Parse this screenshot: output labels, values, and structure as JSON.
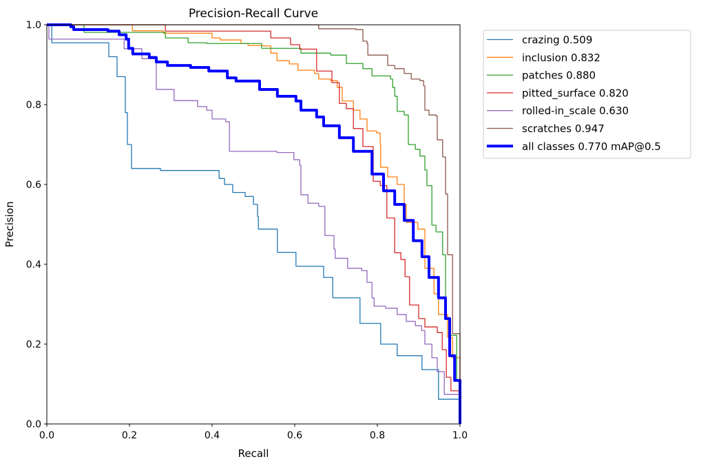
{
  "chart_data": {
    "type": "line",
    "title": "Precision-Recall Curve",
    "xlabel": "Recall",
    "ylabel": "Precision",
    "xlim": [
      0,
      1
    ],
    "ylim": [
      0,
      1
    ],
    "xticks": [
      "0.0",
      "0.2",
      "0.4",
      "0.6",
      "0.8",
      "1.0"
    ],
    "yticks": [
      "0.0",
      "0.2",
      "0.4",
      "0.6",
      "0.8",
      "1.0"
    ],
    "grid": false,
    "legend_placement": "outside-right-top",
    "series": [
      {
        "name": "crazing 0.509",
        "color": "#1f77b4",
        "width": 1.3,
        "points": [
          [
            0,
            1
          ],
          [
            0.012,
            0.955
          ],
          [
            0.15,
            0.92
          ],
          [
            0.17,
            0.87
          ],
          [
            0.19,
            0.78
          ],
          [
            0.195,
            0.7
          ],
          [
            0.205,
            0.64
          ],
          [
            0.275,
            0.635
          ],
          [
            0.417,
            0.615
          ],
          [
            0.43,
            0.6
          ],
          [
            0.45,
            0.58
          ],
          [
            0.48,
            0.57
          ],
          [
            0.5,
            0.55
          ],
          [
            0.51,
            0.52
          ],
          [
            0.512,
            0.488
          ],
          [
            0.558,
            0.43
          ],
          [
            0.603,
            0.395
          ],
          [
            0.67,
            0.367
          ],
          [
            0.692,
            0.316
          ],
          [
            0.758,
            0.252
          ],
          [
            0.808,
            0.2
          ],
          [
            0.848,
            0.171
          ],
          [
            0.908,
            0.136
          ],
          [
            0.948,
            0.062
          ],
          [
            1,
            0
          ]
        ]
      },
      {
        "name": "inclusion 0.832",
        "color": "#ff7f0e",
        "width": 1.3,
        "points": [
          [
            0,
            1
          ],
          [
            0.207,
            0.985
          ],
          [
            0.282,
            0.979
          ],
          [
            0.4,
            0.967
          ],
          [
            0.42,
            0.962
          ],
          [
            0.47,
            0.953
          ],
          [
            0.487,
            0.948
          ],
          [
            0.525,
            0.947
          ],
          [
            0.542,
            0.929
          ],
          [
            0.557,
            0.91
          ],
          [
            0.587,
            0.902
          ],
          [
            0.608,
            0.886
          ],
          [
            0.648,
            0.878
          ],
          [
            0.658,
            0.864
          ],
          [
            0.687,
            0.86
          ],
          [
            0.703,
            0.843
          ],
          [
            0.715,
            0.809
          ],
          [
            0.742,
            0.786
          ],
          [
            0.758,
            0.764
          ],
          [
            0.775,
            0.734
          ],
          [
            0.798,
            0.729
          ],
          [
            0.807,
            0.7
          ],
          [
            0.808,
            0.643
          ],
          [
            0.825,
            0.619
          ],
          [
            0.848,
            0.6
          ],
          [
            0.865,
            0.55
          ],
          [
            0.87,
            0.505
          ],
          [
            0.898,
            0.488
          ],
          [
            0.915,
            0.39
          ],
          [
            0.937,
            0.326
          ],
          [
            0.948,
            0.274
          ],
          [
            0.97,
            0.217
          ],
          [
            0.982,
            0.166
          ],
          [
            1,
            0
          ]
        ]
      },
      {
        "name": "patches 0.880",
        "color": "#2ca02c",
        "width": 1.3,
        "points": [
          [
            0,
            1
          ],
          [
            0.09,
            0.981
          ],
          [
            0.287,
            0.967
          ],
          [
            0.342,
            0.955
          ],
          [
            0.387,
            0.953
          ],
          [
            0.52,
            0.941
          ],
          [
            0.575,
            0.941
          ],
          [
            0.615,
            0.929
          ],
          [
            0.687,
            0.924
          ],
          [
            0.725,
            0.903
          ],
          [
            0.765,
            0.89
          ],
          [
            0.787,
            0.872
          ],
          [
            0.832,
            0.864
          ],
          [
            0.837,
            0.843
          ],
          [
            0.842,
            0.821
          ],
          [
            0.848,
            0.783
          ],
          [
            0.865,
            0.774
          ],
          [
            0.875,
            0.7
          ],
          [
            0.892,
            0.688
          ],
          [
            0.903,
            0.671
          ],
          [
            0.915,
            0.636
          ],
          [
            0.92,
            0.597
          ],
          [
            0.932,
            0.498
          ],
          [
            0.942,
            0.481
          ],
          [
            0.958,
            0.424
          ],
          [
            0.965,
            0.264
          ],
          [
            0.975,
            0.222
          ],
          [
            0.992,
            0.109
          ],
          [
            1,
            0
          ]
        ]
      },
      {
        "name": "pitted_surface 0.820",
        "color": "#d62728",
        "width": 1.3,
        "points": [
          [
            0,
            1
          ],
          [
            0.287,
            0.984
          ],
          [
            0.542,
            0.967
          ],
          [
            0.59,
            0.95
          ],
          [
            0.612,
            0.939
          ],
          [
            0.653,
            0.884
          ],
          [
            0.667,
            0.884
          ],
          [
            0.69,
            0.855
          ],
          [
            0.708,
            0.803
          ],
          [
            0.725,
            0.79
          ],
          [
            0.742,
            0.74
          ],
          [
            0.765,
            0.695
          ],
          [
            0.79,
            0.608
          ],
          [
            0.807,
            0.597
          ],
          [
            0.823,
            0.516
          ],
          [
            0.842,
            0.429
          ],
          [
            0.857,
            0.412
          ],
          [
            0.867,
            0.369
          ],
          [
            0.878,
            0.298
          ],
          [
            0.9,
            0.264
          ],
          [
            0.915,
            0.243
          ],
          [
            0.945,
            0.229
          ],
          [
            0.957,
            0.186
          ],
          [
            0.967,
            0.117
          ],
          [
            0.978,
            0.083
          ],
          [
            0.987,
            0.083
          ],
          [
            1,
            0
          ]
        ]
      },
      {
        "name": "rolled-in_scale 0.630",
        "color": "#9467bd",
        "width": 1.3,
        "points": [
          [
            0,
            1
          ],
          [
            0.005,
            0.964
          ],
          [
            0.187,
            0.94
          ],
          [
            0.23,
            0.915
          ],
          [
            0.265,
            0.838
          ],
          [
            0.308,
            0.81
          ],
          [
            0.365,
            0.795
          ],
          [
            0.387,
            0.786
          ],
          [
            0.4,
            0.764
          ],
          [
            0.433,
            0.757
          ],
          [
            0.442,
            0.683
          ],
          [
            0.557,
            0.68
          ],
          [
            0.598,
            0.662
          ],
          [
            0.612,
            0.648
          ],
          [
            0.615,
            0.574
          ],
          [
            0.632,
            0.553
          ],
          [
            0.658,
            0.545
          ],
          [
            0.673,
            0.472
          ],
          [
            0.695,
            0.438
          ],
          [
            0.698,
            0.415
          ],
          [
            0.728,
            0.39
          ],
          [
            0.762,
            0.384
          ],
          [
            0.775,
            0.355
          ],
          [
            0.787,
            0.316
          ],
          [
            0.792,
            0.295
          ],
          [
            0.82,
            0.29
          ],
          [
            0.848,
            0.274
          ],
          [
            0.87,
            0.257
          ],
          [
            0.892,
            0.246
          ],
          [
            0.907,
            0.234
          ],
          [
            0.915,
            0.2
          ],
          [
            0.932,
            0.166
          ],
          [
            0.945,
            0.131
          ],
          [
            0.962,
            0.074
          ],
          [
            1,
            0
          ]
        ]
      },
      {
        "name": "scratches 0.947",
        "color": "#8c564b",
        "width": 1.3,
        "points": [
          [
            0,
            1
          ],
          [
            0.658,
            0.99
          ],
          [
            0.748,
            0.988
          ],
          [
            0.765,
            0.959
          ],
          [
            0.775,
            0.953
          ],
          [
            0.777,
            0.924
          ],
          [
            0.825,
            0.898
          ],
          [
            0.842,
            0.89
          ],
          [
            0.865,
            0.878
          ],
          [
            0.882,
            0.864
          ],
          [
            0.903,
            0.86
          ],
          [
            0.912,
            0.847
          ],
          [
            0.915,
            0.786
          ],
          [
            0.925,
            0.774
          ],
          [
            0.942,
            0.772
          ],
          [
            0.945,
            0.712
          ],
          [
            0.958,
            0.669
          ],
          [
            0.965,
            0.576
          ],
          [
            0.97,
            0.424
          ],
          [
            0.982,
            0.226
          ],
          [
            0.992,
            0.226
          ],
          [
            1,
            0
          ]
        ]
      },
      {
        "name": "all classes 0.770 mAP@0.5",
        "color": "#0000ff",
        "width": 4,
        "points": [
          [
            0,
            1
          ],
          [
            0.058,
            0.995
          ],
          [
            0.065,
            0.988
          ],
          [
            0.148,
            0.984
          ],
          [
            0.175,
            0.975
          ],
          [
            0.192,
            0.964
          ],
          [
            0.198,
            0.941
          ],
          [
            0.208,
            0.927
          ],
          [
            0.248,
            0.918
          ],
          [
            0.265,
            0.907
          ],
          [
            0.292,
            0.898
          ],
          [
            0.348,
            0.893
          ],
          [
            0.392,
            0.884
          ],
          [
            0.437,
            0.867
          ],
          [
            0.458,
            0.859
          ],
          [
            0.515,
            0.838
          ],
          [
            0.558,
            0.821
          ],
          [
            0.603,
            0.809
          ],
          [
            0.615,
            0.786
          ],
          [
            0.653,
            0.769
          ],
          [
            0.67,
            0.747
          ],
          [
            0.708,
            0.717
          ],
          [
            0.742,
            0.683
          ],
          [
            0.787,
            0.626
          ],
          [
            0.815,
            0.584
          ],
          [
            0.842,
            0.55
          ],
          [
            0.865,
            0.51
          ],
          [
            0.887,
            0.459
          ],
          [
            0.908,
            0.419
          ],
          [
            0.925,
            0.367
          ],
          [
            0.948,
            0.316
          ],
          [
            0.965,
            0.264
          ],
          [
            0.975,
            0.171
          ],
          [
            0.987,
            0.109
          ],
          [
            1,
            0
          ]
        ]
      }
    ]
  }
}
